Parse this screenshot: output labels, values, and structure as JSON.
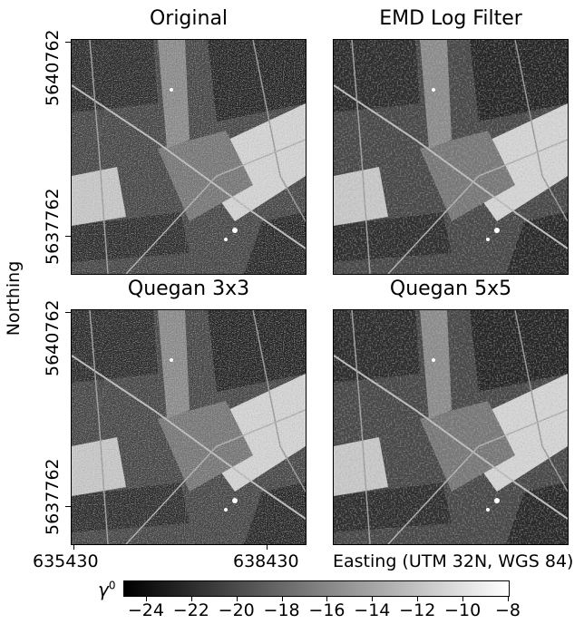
{
  "panels": [
    {
      "title": "Original",
      "image": "sar-original-radar-image"
    },
    {
      "title": "EMD Log Filter",
      "image": "sar-emd-log-filtered-image"
    },
    {
      "title": "Quegan 3x3",
      "image": "sar-quegan-3x3-filtered-image"
    },
    {
      "title": "Quegan 5x5",
      "image": "sar-quegan-5x5-filtered-image"
    }
  ],
  "axes": {
    "ylabel": "Northing",
    "yticks": [
      "5640762",
      "5637762"
    ],
    "xticks": [
      "635430",
      "638430"
    ],
    "xlabel": "Easting (UTM 32N, WGS 84)"
  },
  "colorbar": {
    "label": "γ",
    "label_sup": "0",
    "ticks": [
      "−24",
      "−22",
      "−20",
      "−18",
      "−16",
      "−14",
      "−12",
      "−10",
      "−8"
    ],
    "range": [
      -25,
      -8
    ],
    "colormap": "grayscale"
  }
}
